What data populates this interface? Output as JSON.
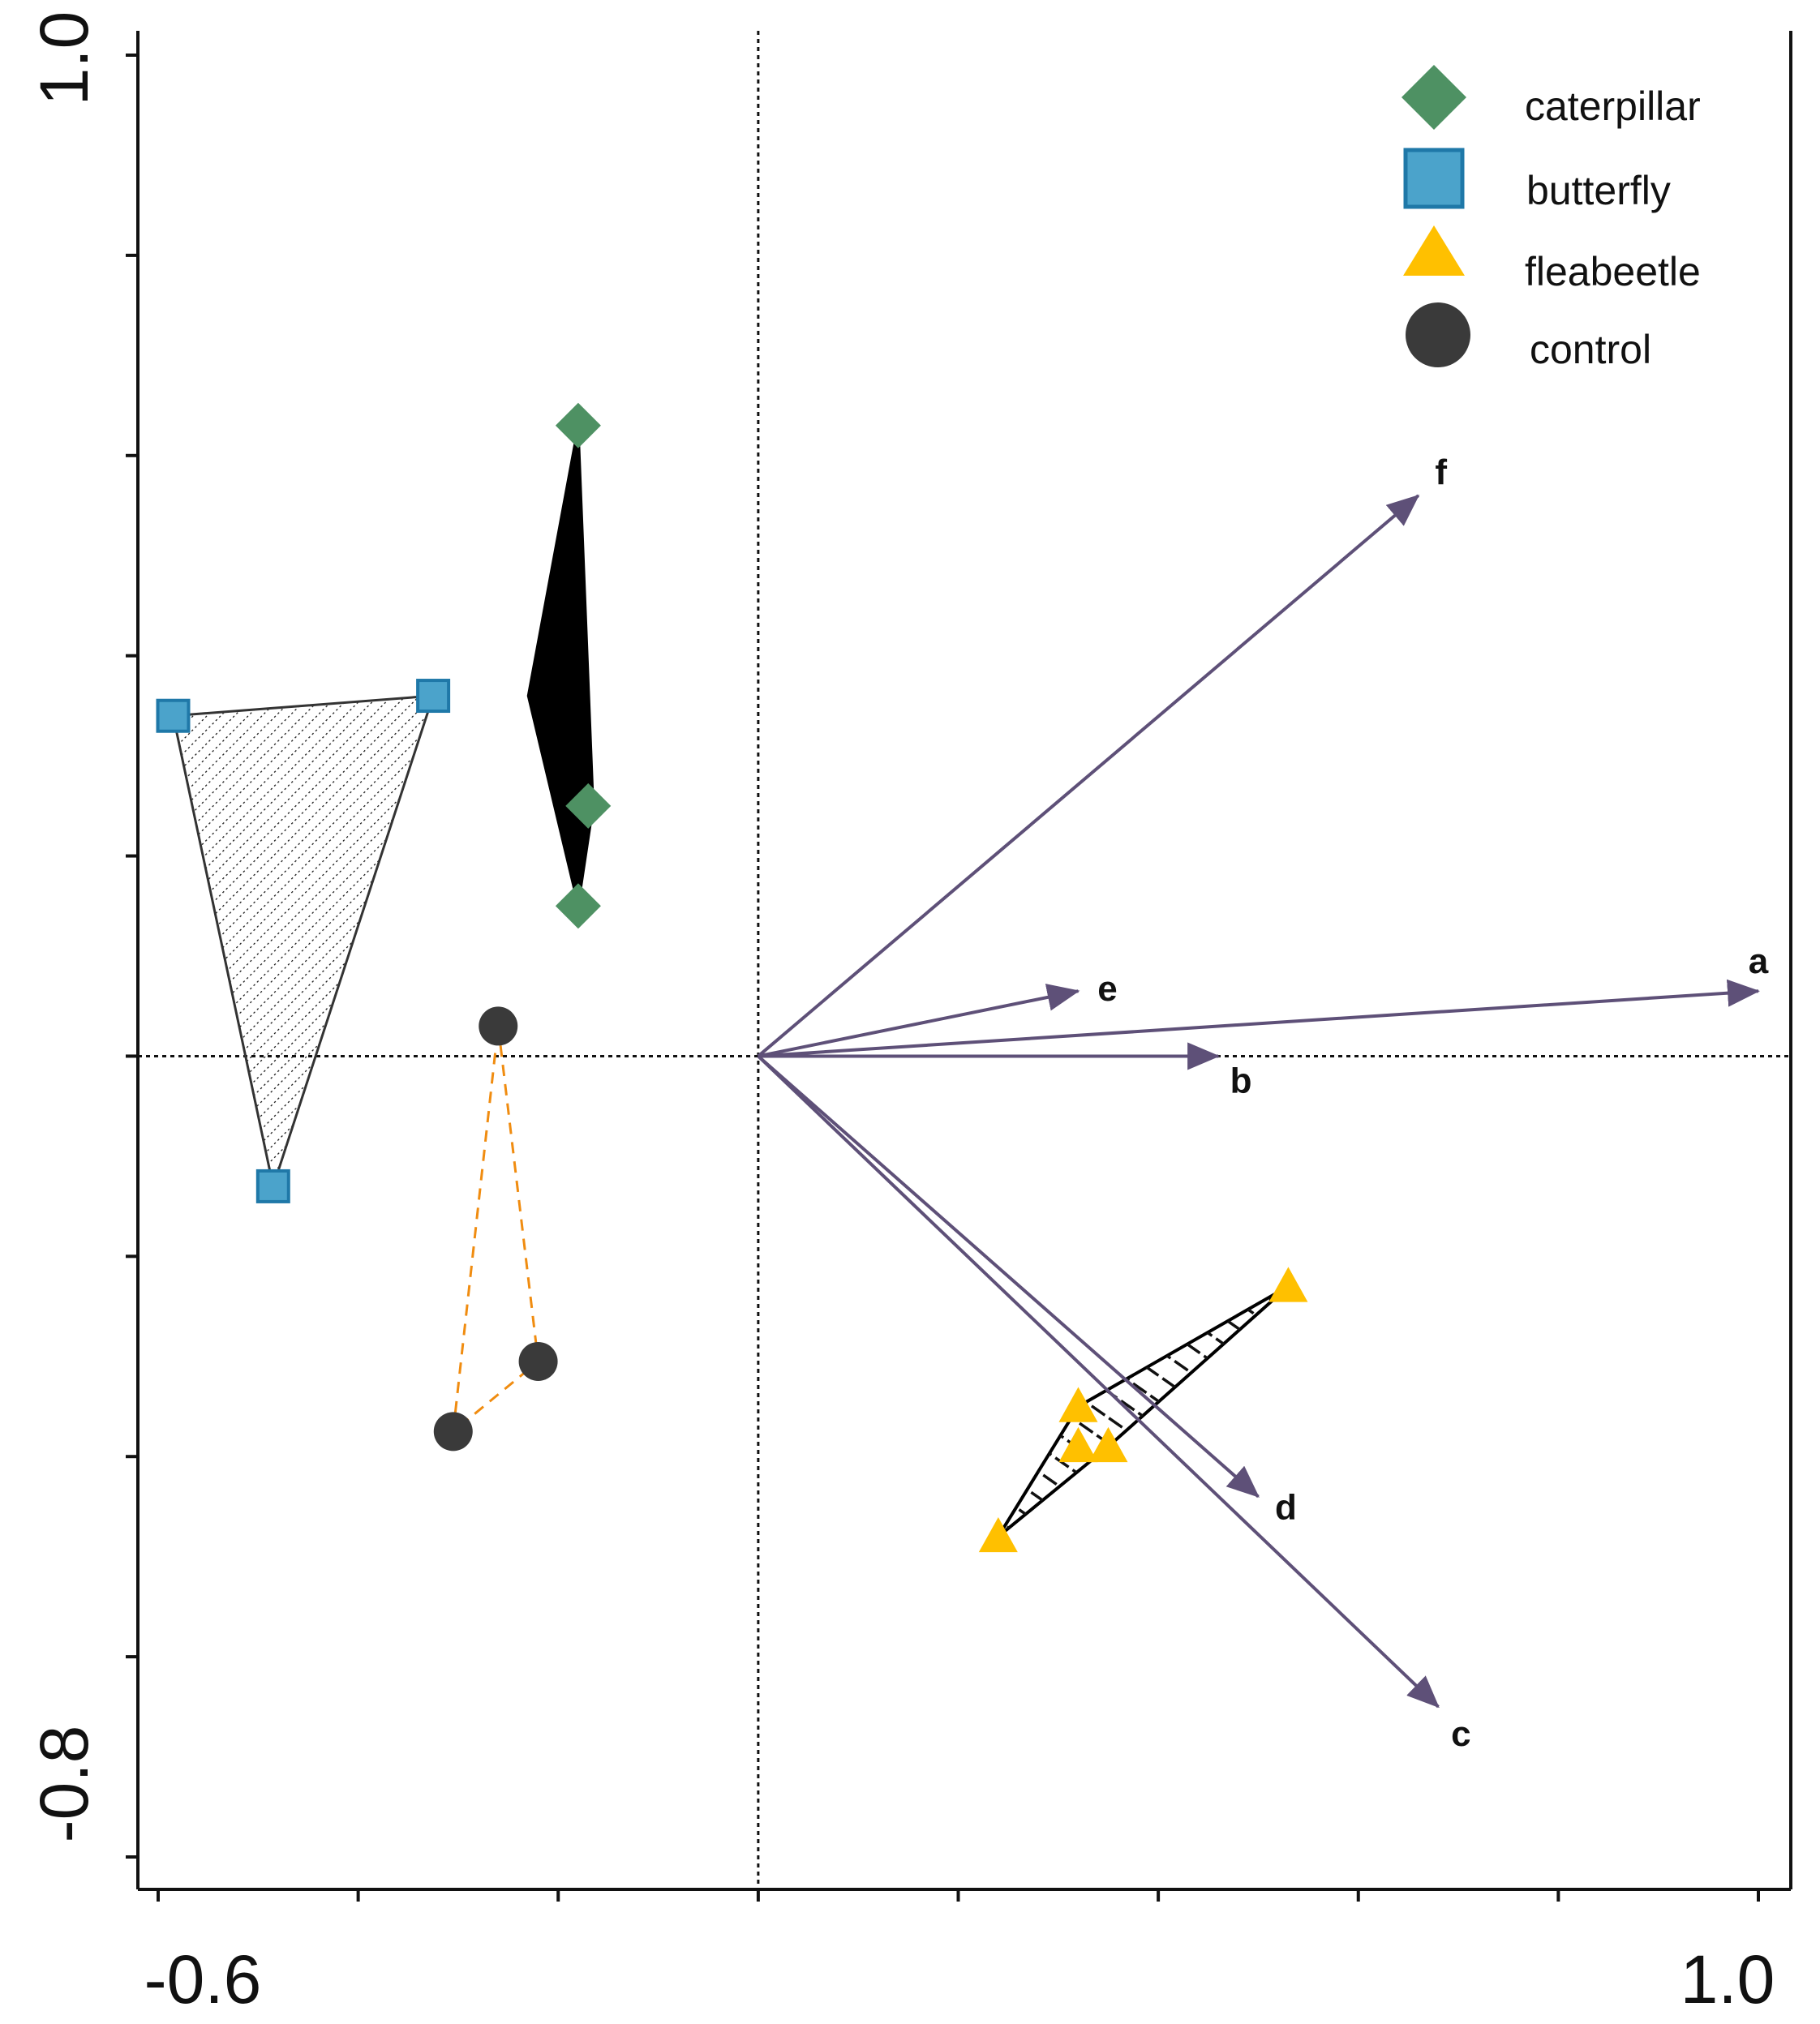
{
  "chart_data": {
    "type": "scatter",
    "title": "",
    "xlabel": "",
    "ylabel": "",
    "xlim": [
      -0.6,
      1.0
    ],
    "ylim": [
      -0.8,
      1.0
    ],
    "x_tick_labels": [
      "-0.6",
      "1.0"
    ],
    "y_tick_labels": [
      "1.0",
      "-0.8"
    ],
    "reference_lines": {
      "x": 0.0,
      "y": 0.0
    },
    "legend_position": "top-right",
    "colors": {
      "caterpillar": "#4e9163",
      "butterfly": "#4ba3cb",
      "butterfly_edge": "#1f78a8",
      "fleabeetle": "#ffc000",
      "control": "#3a3a3a",
      "control_hull": "#f08c10",
      "arrow": "#5e5078",
      "axis": "#111111"
    },
    "series": [
      {
        "name": "caterpillar",
        "marker": "diamond",
        "hull": "solid-black",
        "points": [
          [
            -0.18,
            0.63
          ],
          [
            -0.17,
            0.25
          ],
          [
            -0.18,
            0.15
          ]
        ],
        "hull_points": [
          [
            -0.18,
            0.63
          ],
          [
            -0.23,
            0.36
          ],
          [
            -0.18,
            0.15
          ],
          [
            -0.165,
            0.25
          ]
        ]
      },
      {
        "name": "butterfly",
        "marker": "square",
        "hull": "diagonal-hatch",
        "points": [
          [
            -0.585,
            0.34
          ],
          [
            -0.325,
            0.36
          ],
          [
            -0.485,
            -0.13
          ]
        ]
      },
      {
        "name": "fleabeetle",
        "marker": "triangle",
        "hull": "dashed-hatch",
        "points": [
          [
            0.53,
            -0.23
          ],
          [
            0.32,
            -0.35
          ],
          [
            0.32,
            -0.39
          ],
          [
            0.35,
            -0.39
          ],
          [
            0.24,
            -0.48
          ]
        ]
      },
      {
        "name": "control",
        "marker": "circle",
        "hull": "orange-dashed-outline",
        "points": [
          [
            -0.26,
            0.03
          ],
          [
            -0.22,
            -0.305
          ],
          [
            -0.305,
            -0.375
          ]
        ]
      }
    ],
    "vectors": [
      {
        "label": "a",
        "x": 1.0,
        "y": 0.065
      },
      {
        "label": "b",
        "x": 0.46,
        "y": 0.0
      },
      {
        "label": "c",
        "x": 0.68,
        "y": -0.65
      },
      {
        "label": "d",
        "x": 0.5,
        "y": -0.44
      },
      {
        "label": "e",
        "x": 0.32,
        "y": 0.065
      },
      {
        "label": "f",
        "x": 0.66,
        "y": 0.56
      }
    ]
  }
}
